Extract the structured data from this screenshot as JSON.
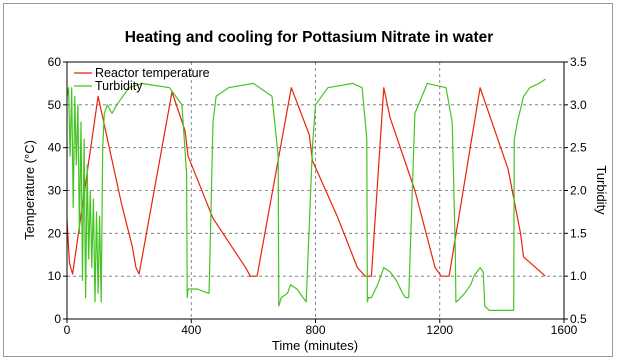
{
  "chart_data": {
    "type": "line",
    "title": "Heating and cooling for Pottasium Nitrate in water",
    "xlabel": "Time (minutes)",
    "ylabel": "Temperature (°C)",
    "y2label": "Turbidity",
    "xlim": [
      0,
      1600
    ],
    "ylim": [
      0,
      60
    ],
    "y2lim": [
      0.5,
      3.5
    ],
    "xticks": [
      "0",
      "400",
      "800",
      "1200",
      "1600"
    ],
    "yticks": [
      "0",
      "10",
      "20",
      "30",
      "40",
      "50",
      "60"
    ],
    "y2ticks": [
      "0.5",
      "1.0",
      "1.5",
      "2.0",
      "2.5",
      "3.0",
      "3.5"
    ],
    "grid": true,
    "legend_position": "top-left",
    "colors": {
      "reactor": "#e8230c",
      "turbidity": "#44c421"
    },
    "series": [
      {
        "name": "Reactor temperature",
        "axis": "left",
        "x": [
          0,
          8,
          18,
          100,
          175,
          210,
          222,
          232,
          338,
          380,
          390,
          470,
          575,
          590,
          612,
          722,
          780,
          790,
          870,
          935,
          960,
          980,
          1020,
          1040,
          1120,
          1185,
          1205,
          1230,
          1330,
          1420,
          1460,
          1470,
          1540
        ],
        "y": [
          23,
          13,
          10.5,
          52,
          27,
          17,
          12,
          10.5,
          53,
          44,
          38,
          23.5,
          12,
          10,
          10,
          54,
          43,
          37,
          24,
          12,
          10,
          10,
          54,
          47,
          30,
          12,
          10,
          10,
          54,
          35,
          20,
          14.5,
          10
        ]
      },
      {
        "name": "Turbidity",
        "axis": "right",
        "x": [
          0,
          5,
          10,
          15,
          20,
          25,
          30,
          35,
          40,
          45,
          50,
          55,
          60,
          65,
          70,
          75,
          80,
          85,
          90,
          95,
          100,
          105,
          110,
          115,
          120,
          130,
          145,
          160,
          180,
          200,
          240,
          330,
          370,
          385,
          387,
          390,
          400,
          420,
          440,
          457,
          460,
          470,
          480,
          520,
          600,
          660,
          680,
          682,
          690,
          710,
          720,
          740,
          760,
          770,
          790,
          800,
          840,
          920,
          950,
          965,
          967,
          970,
          980,
          1000,
          1020,
          1040,
          1060,
          1080,
          1090,
          1100,
          1120,
          1160,
          1220,
          1240,
          1250,
          1252,
          1260,
          1280,
          1300,
          1310,
          1320,
          1330,
          1340,
          1345,
          1360,
          1400,
          1438,
          1440,
          1450,
          1470,
          1490,
          1520,
          1540
        ],
        "y": [
          3.1,
          3.2,
          2.4,
          3.2,
          1.8,
          3.1,
          2.3,
          3.0,
          1.5,
          2.8,
          0.95,
          2.6,
          0.75,
          2.3,
          1.2,
          2.0,
          1.1,
          1.9,
          0.7,
          1.75,
          0.8,
          1.7,
          0.7,
          2.5,
          2.9,
          3.0,
          2.9,
          3.0,
          3.1,
          3.2,
          3.25,
          3.2,
          3.0,
          2.2,
          0.75,
          0.85,
          0.85,
          0.85,
          0.82,
          0.8,
          1.2,
          2.8,
          3.1,
          3.2,
          3.25,
          3.1,
          2.4,
          0.65,
          0.75,
          0.8,
          0.9,
          0.85,
          0.75,
          0.7,
          2.5,
          3.0,
          3.2,
          3.25,
          3.2,
          2.6,
          0.7,
          0.75,
          0.75,
          0.9,
          1.1,
          1.05,
          0.95,
          0.8,
          0.75,
          0.75,
          2.9,
          3.25,
          3.2,
          2.8,
          1.3,
          0.7,
          0.72,
          0.8,
          0.9,
          1.0,
          1.05,
          1.1,
          1.05,
          0.65,
          0.6,
          0.6,
          0.6,
          2.6,
          2.8,
          3.1,
          3.2,
          3.25,
          3.3
        ]
      }
    ]
  }
}
